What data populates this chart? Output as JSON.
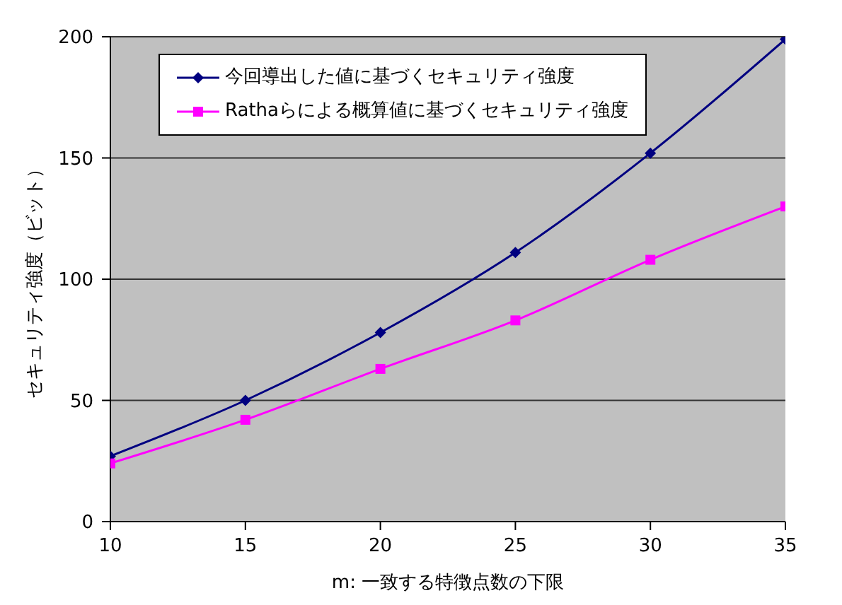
{
  "chart_data": {
    "type": "line",
    "xlabel": "m: 一致する特徴点数の下限",
    "ylabel": "セキュリティ強度（ビット）",
    "x": [
      10,
      15,
      20,
      25,
      30,
      35
    ],
    "xlim": [
      10,
      35
    ],
    "xticks": [
      10,
      15,
      20,
      25,
      30,
      35
    ],
    "ylim": [
      0,
      200
    ],
    "yticks": [
      0,
      50,
      100,
      150,
      200
    ],
    "grid": "y",
    "legend": "top left",
    "series": [
      {
        "name": "今回導出した値に基づくセキュリティ強度",
        "color": "#000080",
        "marker": "diamond",
        "values": [
          27,
          50,
          78,
          111,
          152,
          199
        ]
      },
      {
        "name": "Rathaらによる概算値に基づくセキュリティ強度",
        "color": "#ff00ff",
        "marker": "square",
        "values": [
          24,
          42,
          63,
          83,
          108,
          130
        ]
      }
    ]
  }
}
